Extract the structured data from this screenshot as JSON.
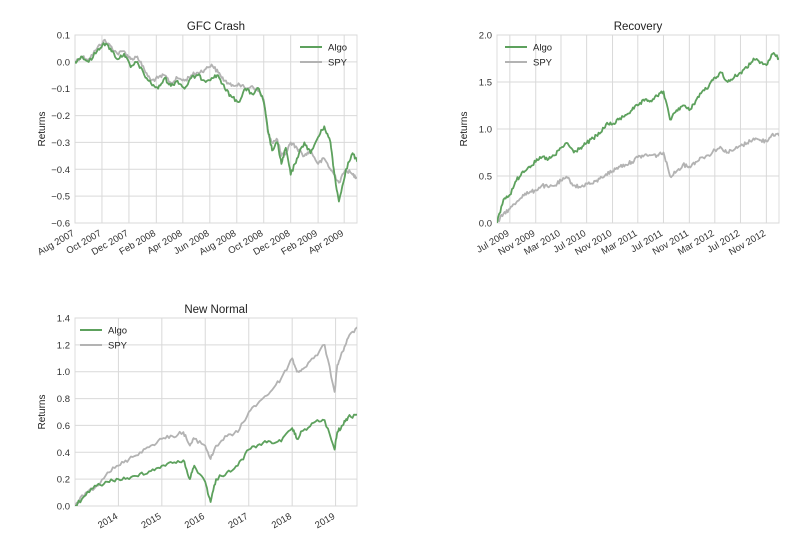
{
  "chart_data": [
    {
      "type": "line",
      "title": "GFC Crash",
      "xlabel": "",
      "ylabel": "Returns",
      "ylim": [
        -0.6,
        0.1
      ],
      "yticks": [
        -0.6,
        -0.5,
        -0.4,
        -0.3,
        -0.2,
        -0.1,
        0.0,
        0.1
      ],
      "ytick_labels": [
        "−0.6",
        "−0.5",
        "−0.4",
        "−0.3",
        "−0.2",
        "−0.1",
        "0.0",
        "0.1"
      ],
      "xlim": [
        "2007-08-01",
        "2009-04-30"
      ],
      "xticks": [
        "2007-08-01",
        "2007-10-01",
        "2007-12-01",
        "2008-02-01",
        "2008-04-01",
        "2008-06-01",
        "2008-08-01",
        "2008-10-01",
        "2008-12-01",
        "2009-02-01",
        "2009-04-01"
      ],
      "xtick_labels": [
        "Aug 2007",
        "Oct 2007",
        "Dec 2007",
        "Feb 2008",
        "Apr 2008",
        "Jun 2008",
        "Aug 2008",
        "Oct 2008",
        "Dec 2008",
        "Feb 2009",
        "Apr 2009"
      ],
      "grid": true,
      "legend": "top-right",
      "series": [
        {
          "name": "Algo",
          "color": "#5da15d",
          "x": [
            "2007-08-01",
            "2007-08-15",
            "2007-09-01",
            "2007-09-20",
            "2007-10-05",
            "2007-10-20",
            "2007-11-05",
            "2007-11-20",
            "2007-12-05",
            "2007-12-20",
            "2008-01-05",
            "2008-01-20",
            "2008-02-05",
            "2008-02-20",
            "2008-03-05",
            "2008-03-20",
            "2008-04-05",
            "2008-04-20",
            "2008-05-05",
            "2008-05-20",
            "2008-06-05",
            "2008-06-20",
            "2008-07-05",
            "2008-07-20",
            "2008-08-05",
            "2008-08-20",
            "2008-09-05",
            "2008-09-20",
            "2008-10-01",
            "2008-10-10",
            "2008-10-20",
            "2008-11-01",
            "2008-11-10",
            "2008-11-20",
            "2008-12-01",
            "2008-12-15",
            "2009-01-01",
            "2009-01-15",
            "2009-02-01",
            "2009-02-15",
            "2009-03-01",
            "2009-03-10",
            "2009-03-20",
            "2009-04-05",
            "2009-04-20",
            "2009-04-30"
          ],
          "y": [
            0.0,
            0.02,
            0.0,
            0.04,
            0.07,
            0.05,
            0.01,
            0.03,
            -0.02,
            0.0,
            -0.05,
            -0.08,
            -0.1,
            -0.06,
            -0.09,
            -0.07,
            -0.1,
            -0.06,
            -0.05,
            -0.07,
            -0.06,
            -0.05,
            -0.1,
            -0.13,
            -0.15,
            -0.1,
            -0.12,
            -0.1,
            -0.15,
            -0.25,
            -0.33,
            -0.3,
            -0.38,
            -0.32,
            -0.42,
            -0.36,
            -0.3,
            -0.34,
            -0.28,
            -0.24,
            -0.3,
            -0.42,
            -0.52,
            -0.4,
            -0.34,
            -0.37
          ]
        },
        {
          "name": "SPY",
          "color": "#b3b3b3",
          "x": [
            "2007-08-01",
            "2007-08-15",
            "2007-09-01",
            "2007-09-20",
            "2007-10-05",
            "2007-10-20",
            "2007-11-05",
            "2007-11-20",
            "2007-12-05",
            "2007-12-20",
            "2008-01-05",
            "2008-01-20",
            "2008-02-05",
            "2008-02-20",
            "2008-03-05",
            "2008-03-20",
            "2008-04-05",
            "2008-04-20",
            "2008-05-05",
            "2008-05-20",
            "2008-06-05",
            "2008-06-20",
            "2008-07-05",
            "2008-07-20",
            "2008-08-05",
            "2008-08-20",
            "2008-09-05",
            "2008-09-20",
            "2008-10-01",
            "2008-10-10",
            "2008-10-20",
            "2008-11-01",
            "2008-11-10",
            "2008-11-20",
            "2008-12-01",
            "2008-12-15",
            "2009-01-01",
            "2009-01-15",
            "2009-02-01",
            "2009-02-15",
            "2009-03-01",
            "2009-03-10",
            "2009-03-20",
            "2009-04-05",
            "2009-04-20",
            "2009-04-30"
          ],
          "y": [
            0.0,
            0.02,
            0.01,
            0.05,
            0.08,
            0.06,
            0.03,
            0.04,
            0.01,
            0.02,
            -0.03,
            -0.07,
            -0.06,
            -0.05,
            -0.08,
            -0.06,
            -0.07,
            -0.05,
            -0.04,
            -0.03,
            -0.01,
            -0.04,
            -0.07,
            -0.09,
            -0.08,
            -0.1,
            -0.09,
            -0.11,
            -0.14,
            -0.26,
            -0.3,
            -0.29,
            -0.35,
            -0.34,
            -0.3,
            -0.32,
            -0.35,
            -0.33,
            -0.38,
            -0.36,
            -0.4,
            -0.42,
            -0.45,
            -0.4,
            -0.42,
            -0.43
          ]
        }
      ]
    },
    {
      "type": "line",
      "title": "Recovery",
      "xlabel": "",
      "ylabel": "Returns",
      "ylim": [
        0.0,
        2.0
      ],
      "yticks": [
        0.0,
        0.5,
        1.0,
        1.5,
        2.0
      ],
      "ytick_labels": [
        "0.0",
        "0.5",
        "1.0",
        "1.5",
        "2.0"
      ],
      "xlim": [
        "2009-05-01",
        "2012-12-31"
      ],
      "xticks": [
        "2009-07-01",
        "2009-11-01",
        "2010-03-01",
        "2010-07-01",
        "2010-11-01",
        "2011-03-01",
        "2011-07-01",
        "2011-11-01",
        "2012-03-01",
        "2012-07-01",
        "2012-11-01"
      ],
      "xtick_labels": [
        "Jul 2009",
        "Nov 2009",
        "Mar 2010",
        "Jul 2010",
        "Nov 2010",
        "Mar 2011",
        "Jul 2011",
        "Nov 2011",
        "Mar 2012",
        "Jul 2012",
        "Nov 2012"
      ],
      "grid": true,
      "legend": "top-left",
      "series": [
        {
          "name": "Algo",
          "color": "#5da15d",
          "x": [
            "2009-05-01",
            "2009-06-01",
            "2009-07-01",
            "2009-08-01",
            "2009-09-01",
            "2009-10-01",
            "2009-11-01",
            "2009-12-01",
            "2010-01-01",
            "2010-02-01",
            "2010-03-01",
            "2010-04-01",
            "2010-05-01",
            "2010-06-01",
            "2010-07-01",
            "2010-08-01",
            "2010-09-01",
            "2010-10-01",
            "2010-11-01",
            "2010-12-01",
            "2011-01-01",
            "2011-02-01",
            "2011-03-01",
            "2011-04-01",
            "2011-05-01",
            "2011-06-01",
            "2011-07-01",
            "2011-08-01",
            "2011-09-01",
            "2011-10-01",
            "2011-11-01",
            "2011-12-01",
            "2012-01-01",
            "2012-02-01",
            "2012-03-01",
            "2012-04-01",
            "2012-05-01",
            "2012-06-01",
            "2012-07-01",
            "2012-08-01",
            "2012-09-01",
            "2012-10-01",
            "2012-11-01",
            "2012-12-01",
            "2012-12-31"
          ],
          "y": [
            0.0,
            0.25,
            0.3,
            0.45,
            0.55,
            0.6,
            0.65,
            0.7,
            0.68,
            0.72,
            0.8,
            0.85,
            0.75,
            0.8,
            0.85,
            0.9,
            0.95,
            1.05,
            1.05,
            1.1,
            1.15,
            1.2,
            1.25,
            1.3,
            1.3,
            1.35,
            1.4,
            1.1,
            1.2,
            1.25,
            1.2,
            1.3,
            1.4,
            1.45,
            1.55,
            1.6,
            1.5,
            1.55,
            1.6,
            1.65,
            1.75,
            1.7,
            1.68,
            1.8,
            1.75
          ]
        },
        {
          "name": "SPY",
          "color": "#b3b3b3",
          "x": [
            "2009-05-01",
            "2009-06-01",
            "2009-07-01",
            "2009-08-01",
            "2009-09-01",
            "2009-10-01",
            "2009-11-01",
            "2009-12-01",
            "2010-01-01",
            "2010-02-01",
            "2010-03-01",
            "2010-04-01",
            "2010-05-01",
            "2010-06-01",
            "2010-07-01",
            "2010-08-01",
            "2010-09-01",
            "2010-10-01",
            "2010-11-01",
            "2010-12-01",
            "2011-01-01",
            "2011-02-01",
            "2011-03-01",
            "2011-04-01",
            "2011-05-01",
            "2011-06-01",
            "2011-07-01",
            "2011-08-01",
            "2011-09-01",
            "2011-10-01",
            "2011-11-01",
            "2011-12-01",
            "2012-01-01",
            "2012-02-01",
            "2012-03-01",
            "2012-04-01",
            "2012-05-01",
            "2012-06-01",
            "2012-07-01",
            "2012-08-01",
            "2012-09-01",
            "2012-10-01",
            "2012-11-01",
            "2012-12-01",
            "2012-12-31"
          ],
          "y": [
            0.0,
            0.1,
            0.15,
            0.22,
            0.3,
            0.32,
            0.35,
            0.4,
            0.38,
            0.4,
            0.45,
            0.48,
            0.4,
            0.38,
            0.42,
            0.42,
            0.47,
            0.52,
            0.55,
            0.6,
            0.62,
            0.65,
            0.7,
            0.72,
            0.72,
            0.72,
            0.75,
            0.5,
            0.55,
            0.62,
            0.6,
            0.65,
            0.7,
            0.72,
            0.78,
            0.8,
            0.75,
            0.78,
            0.82,
            0.85,
            0.9,
            0.88,
            0.87,
            0.95,
            0.93
          ]
        }
      ]
    },
    {
      "type": "line",
      "title": "New Normal",
      "xlabel": "",
      "ylabel": "Returns",
      "ylim": [
        0.0,
        1.4
      ],
      "yticks": [
        0.0,
        0.2,
        0.4,
        0.6,
        0.8,
        1.0,
        1.2,
        1.4
      ],
      "ytick_labels": [
        "0.0",
        "0.2",
        "0.4",
        "0.6",
        "0.8",
        "1.0",
        "1.2",
        "1.4"
      ],
      "xlim": [
        "2013-01-01",
        "2019-06-30"
      ],
      "xticks": [
        "2014-01-01",
        "2015-01-01",
        "2016-01-01",
        "2017-01-01",
        "2018-01-01",
        "2019-01-01"
      ],
      "xtick_labels": [
        "2014",
        "2015",
        "2016",
        "2017",
        "2018",
        "2019"
      ],
      "grid": true,
      "legend": "top-left",
      "series": [
        {
          "name": "Algo",
          "color": "#5da15d",
          "x": [
            "2013-01-01",
            "2013-04-01",
            "2013-07-01",
            "2013-10-01",
            "2014-01-01",
            "2014-04-01",
            "2014-07-01",
            "2014-10-01",
            "2015-01-01",
            "2015-04-01",
            "2015-07-01",
            "2015-08-25",
            "2015-10-01",
            "2016-01-01",
            "2016-02-15",
            "2016-04-01",
            "2016-07-01",
            "2016-10-01",
            "2017-01-01",
            "2017-04-01",
            "2017-07-01",
            "2017-10-01",
            "2018-01-01",
            "2018-02-10",
            "2018-04-01",
            "2018-07-01",
            "2018-10-01",
            "2018-12-24",
            "2019-01-15",
            "2019-03-01",
            "2019-04-15",
            "2019-06-30"
          ],
          "y": [
            0.0,
            0.08,
            0.15,
            0.18,
            0.2,
            0.2,
            0.24,
            0.26,
            0.3,
            0.32,
            0.34,
            0.2,
            0.3,
            0.18,
            0.03,
            0.2,
            0.25,
            0.3,
            0.42,
            0.46,
            0.48,
            0.48,
            0.58,
            0.5,
            0.56,
            0.62,
            0.64,
            0.42,
            0.55,
            0.6,
            0.66,
            0.68
          ]
        },
        {
          "name": "SPY",
          "color": "#b3b3b3",
          "x": [
            "2013-01-01",
            "2013-04-01",
            "2013-07-01",
            "2013-10-01",
            "2014-01-01",
            "2014-04-01",
            "2014-07-01",
            "2014-10-01",
            "2015-01-01",
            "2015-04-01",
            "2015-07-01",
            "2015-08-25",
            "2015-10-01",
            "2016-01-01",
            "2016-02-15",
            "2016-04-01",
            "2016-07-01",
            "2016-10-01",
            "2017-01-01",
            "2017-04-01",
            "2017-07-01",
            "2017-10-01",
            "2018-01-01",
            "2018-02-10",
            "2018-04-01",
            "2018-07-01",
            "2018-10-01",
            "2018-12-24",
            "2019-01-15",
            "2019-03-01",
            "2019-04-15",
            "2019-06-30"
          ],
          "y": [
            0.0,
            0.1,
            0.15,
            0.25,
            0.3,
            0.35,
            0.4,
            0.45,
            0.5,
            0.52,
            0.55,
            0.45,
            0.5,
            0.45,
            0.35,
            0.45,
            0.52,
            0.55,
            0.7,
            0.78,
            0.85,
            0.95,
            1.1,
            1.0,
            1.02,
            1.1,
            1.2,
            0.85,
            1.05,
            1.15,
            1.25,
            1.33
          ]
        }
      ]
    }
  ]
}
